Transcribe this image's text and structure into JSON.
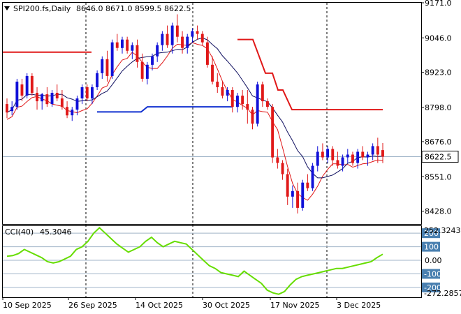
{
  "header": {
    "symbol_label": "SPI200.fs,Daily",
    "ohlc": "8646.0 8671.0 8599.5 8622.5",
    "icon": "dropdown-triangle-icon"
  },
  "indicator": {
    "name_label": "CCI(40)",
    "value_label": "45.3046",
    "axis_labels": [
      "252.3243",
      "-272.2857"
    ],
    "levels": [
      {
        "label": "200",
        "value": 200,
        "highlight": true
      },
      {
        "label": "100",
        "value": 100,
        "highlight": true
      },
      {
        "label": "0.00",
        "value": 0,
        "highlight": false
      },
      {
        "label": "-100",
        "value": -100,
        "highlight": true
      },
      {
        "label": "-200",
        "value": -200,
        "highlight": true
      }
    ]
  },
  "colors": {
    "bull": "#1010d8",
    "bear": "#e01818",
    "ma_fast": "#e01818",
    "ma_slow": "#101060",
    "resistance": "#e01818",
    "support": "#1030d0",
    "cci": "#66dd00",
    "tag_bg": "#4a80b0",
    "price_line": "#a0b4c8",
    "grid": "#000000"
  },
  "chart_data": [
    {
      "type": "candlestick",
      "title": "SPI200.fs,Daily",
      "ylim": [
        8380,
        9171
      ],
      "y_ticks": [
        "9171.0",
        "9046.0",
        "8923.0",
        "8798.0",
        "8676.0",
        "8551.0",
        "8428.0"
      ],
      "current_price": "8622.5",
      "x_ticks": [
        "10 Sep 2025",
        "26 Sep 2025",
        "14 Oct 2025",
        "30 Oct 2025",
        "17 Nov 2025",
        "3 Dec 2025"
      ],
      "candles": [
        [
          8810,
          8830,
          8760,
          8780
        ],
        [
          8785,
          8820,
          8770,
          8800
        ],
        [
          8800,
          8900,
          8790,
          8890
        ],
        [
          8880,
          8900,
          8820,
          8840
        ],
        [
          8840,
          8920,
          8830,
          8910
        ],
        [
          8910,
          8920,
          8840,
          8850
        ],
        [
          8850,
          8870,
          8790,
          8820
        ],
        [
          8820,
          8850,
          8790,
          8845
        ],
        [
          8845,
          8870,
          8800,
          8810
        ],
        [
          8810,
          8860,
          8800,
          8850
        ],
        [
          8850,
          8880,
          8820,
          8830
        ],
        [
          8830,
          8860,
          8790,
          8800
        ],
        [
          8800,
          8820,
          8760,
          8770
        ],
        [
          8770,
          8800,
          8750,
          8790
        ],
        [
          8790,
          8840,
          8770,
          8830
        ],
        [
          8830,
          8880,
          8810,
          8870
        ],
        [
          8870,
          8880,
          8820,
          8830
        ],
        [
          8830,
          8880,
          8810,
          8870
        ],
        [
          8870,
          8930,
          8860,
          8920
        ],
        [
          8920,
          8980,
          8900,
          8970
        ],
        [
          8970,
          9000,
          8890,
          8910
        ],
        [
          8910,
          9040,
          8900,
          9030
        ],
        [
          9030,
          9060,
          9000,
          9010
        ],
        [
          9010,
          9050,
          8990,
          9040
        ],
        [
          9040,
          9050,
          8990,
          9000
        ],
        [
          9000,
          9030,
          8970,
          9020
        ],
        [
          9020,
          9040,
          8940,
          8960
        ],
        [
          8960,
          8990,
          8890,
          8900
        ],
        [
          8900,
          8960,
          8880,
          8950
        ],
        [
          8950,
          8990,
          8930,
          8980
        ],
        [
          8980,
          9030,
          8960,
          9020
        ],
        [
          9020,
          9070,
          9000,
          9060
        ],
        [
          9060,
          9090,
          9010,
          9020
        ],
        [
          9020,
          9100,
          8990,
          9090
        ],
        [
          9090,
          9130,
          9030,
          9050
        ],
        [
          9050,
          9070,
          8990,
          9010
        ],
        [
          9010,
          9060,
          8990,
          9050
        ],
        [
          9050,
          9080,
          9030,
          9070
        ],
        [
          9070,
          9090,
          9040,
          9060
        ],
        [
          9060,
          9070,
          9020,
          9030
        ],
        [
          9030,
          9050,
          8940,
          8950
        ],
        [
          8950,
          8980,
          8880,
          8890
        ],
        [
          8890,
          8920,
          8850,
          8870
        ],
        [
          8870,
          8890,
          8830,
          8840
        ],
        [
          8840,
          8870,
          8820,
          8860
        ],
        [
          8860,
          8870,
          8780,
          8800
        ],
        [
          8800,
          8850,
          8780,
          8840
        ],
        [
          8840,
          8860,
          8790,
          8810
        ],
        [
          8810,
          8860,
          8740,
          8790
        ],
        [
          8790,
          8800,
          8720,
          8740
        ],
        [
          8740,
          8890,
          8730,
          8880
        ],
        [
          8880,
          8890,
          8800,
          8820
        ],
        [
          8820,
          8830,
          8790,
          8800
        ],
        [
          8800,
          8810,
          8600,
          8620
        ],
        [
          8620,
          8650,
          8580,
          8600
        ],
        [
          8600,
          8610,
          8540,
          8560
        ],
        [
          8560,
          8580,
          8450,
          8480
        ],
        [
          8480,
          8520,
          8440,
          8500
        ],
        [
          8500,
          8530,
          8420,
          8440
        ],
        [
          8440,
          8540,
          8430,
          8530
        ],
        [
          8530,
          8560,
          8500,
          8510
        ],
        [
          8510,
          8600,
          8500,
          8590
        ],
        [
          8590,
          8660,
          8570,
          8640
        ],
        [
          8640,
          8670,
          8610,
          8620
        ],
        [
          8620,
          8660,
          8600,
          8650
        ],
        [
          8650,
          8660,
          8590,
          8610
        ],
        [
          8610,
          8640,
          8580,
          8590
        ],
        [
          8590,
          8630,
          8570,
          8620
        ],
        [
          8620,
          8650,
          8600,
          8630
        ],
        [
          8630,
          8640,
          8590,
          8600
        ],
        [
          8600,
          8650,
          8580,
          8640
        ],
        [
          8640,
          8660,
          8610,
          8620
        ],
        [
          8620,
          8640,
          8590,
          8630
        ],
        [
          8630,
          8670,
          8610,
          8660
        ],
        [
          8660,
          8690,
          8600,
          8630
        ],
        [
          8646,
          8671,
          8599.5,
          8622.5
        ]
      ]
    },
    {
      "type": "line",
      "title": "CCI(40)",
      "ylim": [
        -272.2857,
        252.3243
      ],
      "values": [
        30,
        35,
        50,
        80,
        60,
        40,
        20,
        -10,
        -20,
        -10,
        10,
        30,
        80,
        100,
        140,
        200,
        240,
        200,
        160,
        120,
        90,
        60,
        80,
        100,
        140,
        170,
        130,
        100,
        120,
        140,
        130,
        120,
        80,
        40,
        0,
        -40,
        -60,
        -90,
        -100,
        -110,
        -120,
        -80,
        -110,
        -140,
        -170,
        -220,
        -240,
        -250,
        -230,
        -180,
        -140,
        -120,
        -110,
        -100,
        -90,
        -80,
        -70,
        -60,
        -60,
        -50,
        -40,
        -30,
        -20,
        -10,
        20,
        45
      ]
    }
  ]
}
